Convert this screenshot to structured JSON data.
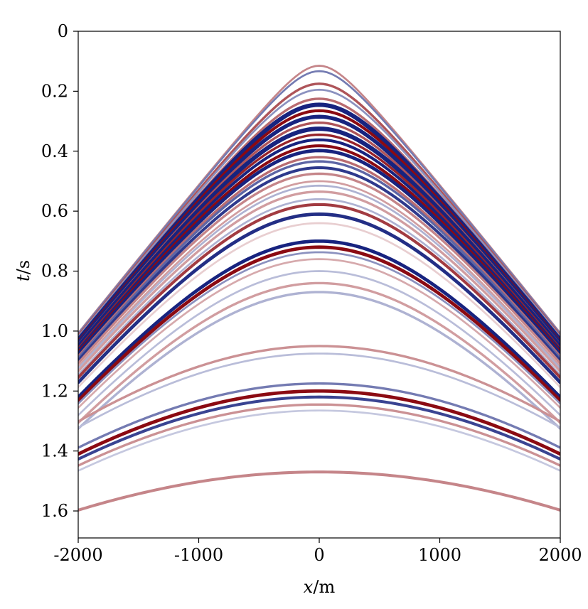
{
  "chart_data": {
    "type": "heatmap",
    "description_type": "seismic shot gather (wiggle-density image, diverging red/blue)",
    "xlabel": {
      "var": "x",
      "unit": "m"
    },
    "ylabel": {
      "var": "t",
      "unit": "s"
    },
    "xlim": [
      -2000,
      2000
    ],
    "ylim": [
      0,
      1.69
    ],
    "y_inverted": true,
    "x_ticks": [
      -2000,
      -1000,
      0,
      1000,
      2000
    ],
    "x_tick_labels": [
      "-2000",
      "-1000",
      "0",
      "1000",
      "2000"
    ],
    "y_ticks": [
      0,
      0.2,
      0.4,
      0.6,
      0.8,
      1.0,
      1.2,
      1.4,
      1.6
    ],
    "y_tick_labels": [
      "0",
      "0.2",
      "0.4",
      "0.6",
      "0.8",
      "1.0",
      "1.2",
      "1.4",
      "1.6"
    ],
    "grid": false,
    "colormap": {
      "positive": "#8b0a12",
      "negative": "#17237f",
      "zero": "#ffffff"
    },
    "direct_wave_cutoff_velocity_mps": 2000,
    "reflections": [
      {
        "t0": 0.115,
        "amp": 0.5,
        "vrms": 2000,
        "width": 0.004
      },
      {
        "t0": 0.133,
        "amp": -0.6,
        "vrms": 2000,
        "width": 0.004
      },
      {
        "t0": 0.175,
        "amp": 0.7,
        "vrms": 2000,
        "width": 0.005
      },
      {
        "t0": 0.195,
        "amp": -0.5,
        "vrms": 2000,
        "width": 0.004
      },
      {
        "t0": 0.225,
        "amp": 0.6,
        "vrms": 2000,
        "width": 0.005
      },
      {
        "t0": 0.245,
        "amp": -1.0,
        "vrms": 2000,
        "width": 0.009
      },
      {
        "t0": 0.265,
        "amp": 1.0,
        "vrms": 2000,
        "width": 0.006
      },
      {
        "t0": 0.285,
        "amp": -1.0,
        "vrms": 2000,
        "width": 0.008
      },
      {
        "t0": 0.305,
        "amp": 0.7,
        "vrms": 2000,
        "width": 0.005
      },
      {
        "t0": 0.325,
        "amp": -1.0,
        "vrms": 2000,
        "width": 0.009
      },
      {
        "t0": 0.345,
        "amp": 0.9,
        "vrms": 2000,
        "width": 0.005
      },
      {
        "t0": 0.362,
        "amp": -1.0,
        "vrms": 2000,
        "width": 0.006
      },
      {
        "t0": 0.382,
        "amp": 1.0,
        "vrms": 2000,
        "width": 0.006
      },
      {
        "t0": 0.398,
        "amp": -1.0,
        "vrms": 2000,
        "width": 0.007
      },
      {
        "t0": 0.42,
        "amp": 0.6,
        "vrms": 2000,
        "width": 0.005
      },
      {
        "t0": 0.434,
        "amp": -0.7,
        "vrms": 2000,
        "width": 0.005
      },
      {
        "t0": 0.455,
        "amp": -0.9,
        "vrms": 2000,
        "width": 0.006
      },
      {
        "t0": 0.475,
        "amp": 0.5,
        "vrms": 2000,
        "width": 0.005
      },
      {
        "t0": 0.5,
        "amp": 0.4,
        "vrms": 2000,
        "width": 0.004
      },
      {
        "t0": 0.515,
        "amp": -0.35,
        "vrms": 2000,
        "width": 0.004
      },
      {
        "t0": 0.535,
        "amp": 0.4,
        "vrms": 2000,
        "width": 0.005
      },
      {
        "t0": 0.56,
        "amp": -0.35,
        "vrms": 2000,
        "width": 0.004
      },
      {
        "t0": 0.578,
        "amp": 0.8,
        "vrms": 2000,
        "width": 0.006
      },
      {
        "t0": 0.61,
        "amp": -0.95,
        "vrms": 2000,
        "width": 0.007
      },
      {
        "t0": 0.64,
        "amp": 0.2,
        "vrms": 2000,
        "width": 0.004
      },
      {
        "t0": 0.7,
        "amp": -1.0,
        "vrms": 2000,
        "width": 0.007
      },
      {
        "t0": 0.72,
        "amp": 1.0,
        "vrms": 2000,
        "width": 0.007
      },
      {
        "t0": 0.737,
        "amp": -0.5,
        "vrms": 2000,
        "width": 0.004
      },
      {
        "t0": 0.76,
        "amp": 0.35,
        "vrms": 2000,
        "width": 0.004
      },
      {
        "t0": 0.8,
        "amp": -0.3,
        "vrms": 2000,
        "width": 0.004
      },
      {
        "t0": 0.84,
        "amp": 0.4,
        "vrms": 2000,
        "width": 0.005
      },
      {
        "t0": 0.87,
        "amp": -0.35,
        "vrms": 2000,
        "width": 0.005
      },
      {
        "t0": 1.05,
        "amp": 0.45,
        "vrms": 2600,
        "width": 0.005
      },
      {
        "t0": 1.075,
        "amp": -0.3,
        "vrms": 2600,
        "width": 0.004
      },
      {
        "t0": 1.175,
        "amp": -0.6,
        "vrms": 2700,
        "width": 0.005
      },
      {
        "t0": 1.2,
        "amp": 1.0,
        "vrms": 2700,
        "width": 0.007
      },
      {
        "t0": 1.22,
        "amp": -0.85,
        "vrms": 2700,
        "width": 0.006
      },
      {
        "t0": 1.245,
        "amp": 0.45,
        "vrms": 2700,
        "width": 0.005
      },
      {
        "t0": 1.265,
        "amp": -0.25,
        "vrms": 2700,
        "width": 0.004
      },
      {
        "t0": 1.47,
        "amp": 0.5,
        "vrms": 3200,
        "width": 0.006
      }
    ]
  }
}
